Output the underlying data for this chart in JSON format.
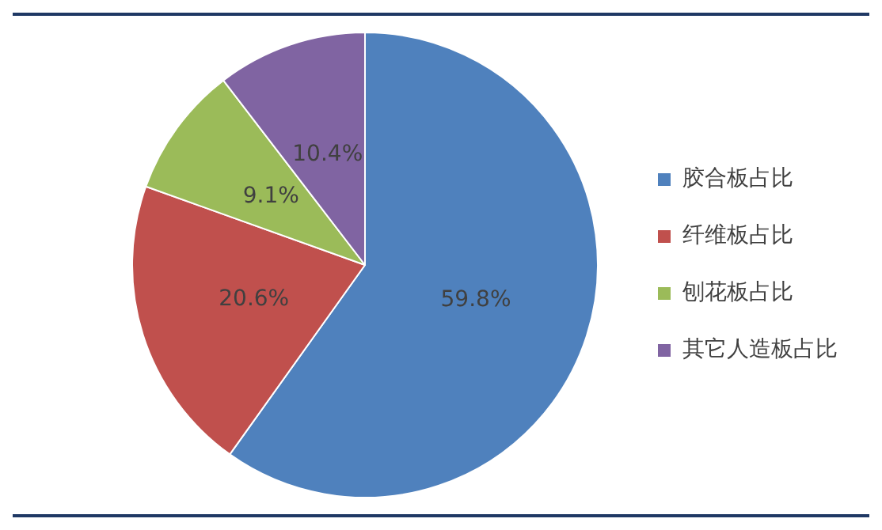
{
  "chart_data": {
    "type": "pie",
    "categories": [
      "胶合板占比",
      "纤维板占比",
      "刨花板占比",
      "其它人造板占比"
    ],
    "values": [
      59.8,
      20.6,
      9.1,
      10.4
    ],
    "colors": [
      "#4f81bd",
      "#c0504d",
      "#9bbb59",
      "#8064a2"
    ],
    "value_labels": [
      "59.8%",
      "20.6%",
      "9.1%",
      "10.4%"
    ],
    "legend": "right"
  }
}
